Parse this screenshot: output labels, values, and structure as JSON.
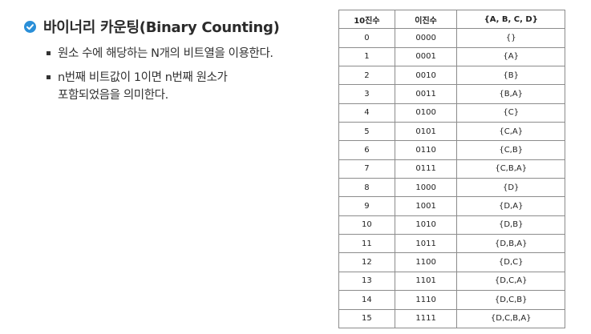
{
  "heading": {
    "icon": "check-circle-icon",
    "icon_color": "#2a8fd8",
    "title": "바이너리 카운팅(Binary Counting)"
  },
  "bullets": [
    {
      "lines": [
        "원소 수에 해당하는 N개의 비트열을 이용한다."
      ]
    },
    {
      "lines": [
        "n번째 비트값이 1이면 n번째 원소가",
        "포함되었음을 의미한다."
      ]
    }
  ],
  "table": {
    "headers": [
      "10진수",
      "이진수",
      "{A, B, C, D}"
    ],
    "rows": [
      [
        "0",
        "0000",
        "{}"
      ],
      [
        "1",
        "0001",
        "{A}"
      ],
      [
        "2",
        "0010",
        "{B}"
      ],
      [
        "3",
        "0011",
        "{B,A}"
      ],
      [
        "4",
        "0100",
        "{C}"
      ],
      [
        "5",
        "0101",
        "{C,A}"
      ],
      [
        "6",
        "0110",
        "{C,B}"
      ],
      [
        "7",
        "0111",
        "{C,B,A}"
      ],
      [
        "8",
        "1000",
        "{D}"
      ],
      [
        "9",
        "1001",
        "{D,A}"
      ],
      [
        "10",
        "1010",
        "{D,B}"
      ],
      [
        "11",
        "1011",
        "{D,B,A}"
      ],
      [
        "12",
        "1100",
        "{D,C}"
      ],
      [
        "13",
        "1101",
        "{D,C,A}"
      ],
      [
        "14",
        "1110",
        "{D,C,B}"
      ],
      [
        "15",
        "1111",
        "{D,C,B,A}"
      ]
    ]
  }
}
